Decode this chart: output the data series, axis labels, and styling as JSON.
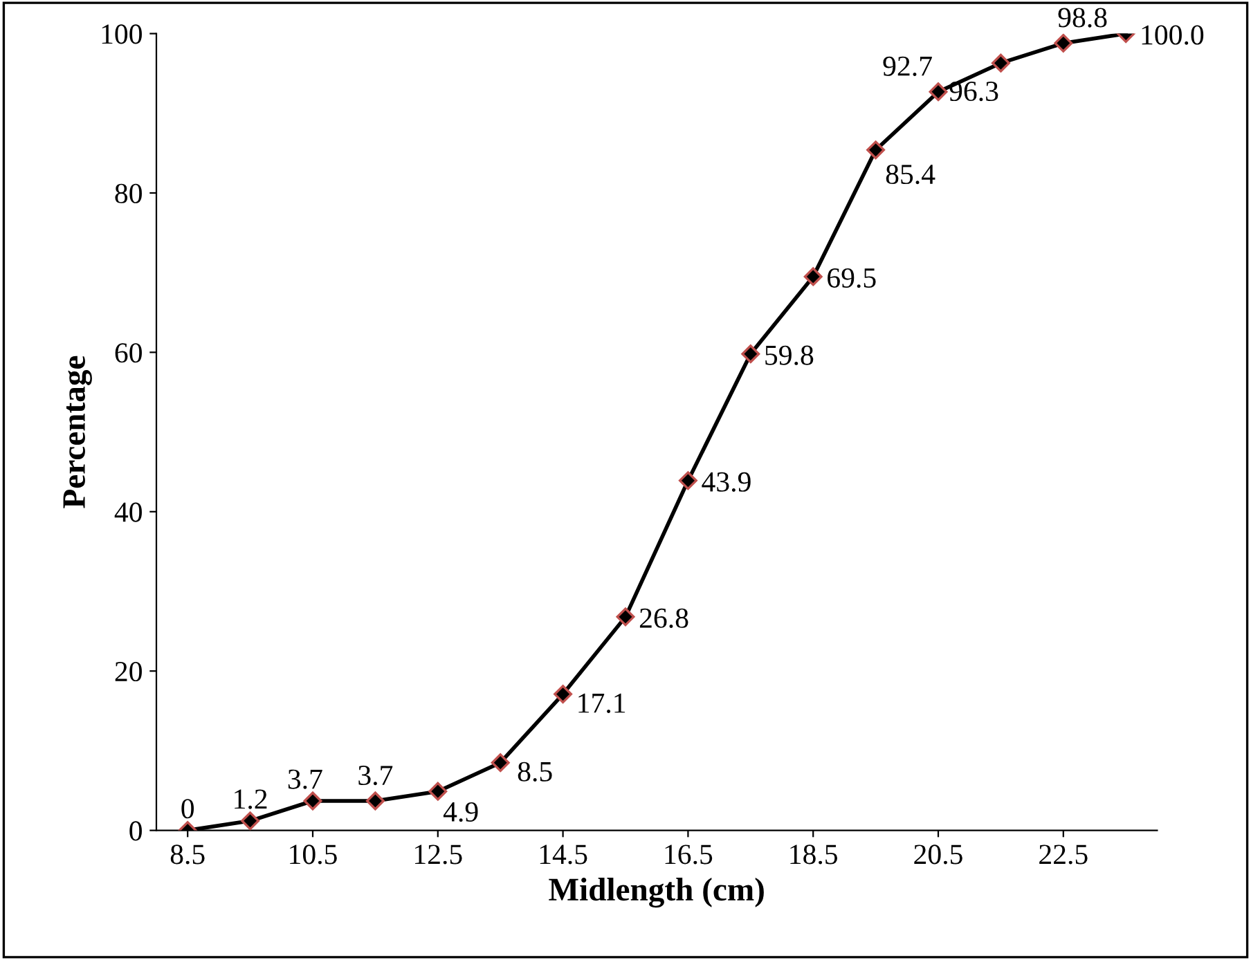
{
  "chart_data": {
    "type": "line",
    "xlabel": "Midlength (cm)",
    "ylabel": "Percentage",
    "x": [
      8.5,
      9.5,
      10.5,
      11.5,
      12.5,
      13.5,
      14.5,
      15.5,
      16.5,
      17.5,
      18.5,
      19.5,
      20.5,
      21.5,
      22.5,
      23.5
    ],
    "series": [
      {
        "color": "#000000",
        "values": [
          0,
          1.2,
          3.7,
          3.7,
          4.9,
          8.5,
          17.1,
          26.8,
          43.9,
          59.8,
          69.5,
          85.4,
          92.7,
          96.3,
          98.8,
          100.0
        ],
        "value_labels": [
          "0",
          "1.2",
          "3.7",
          "3.7",
          "4.9",
          "8.5",
          "17.1",
          "26.8",
          "43.9",
          "59.8",
          "69.5",
          "85.4",
          "92.7",
          "96.3",
          "98.8",
          "100.0"
        ]
      }
    ],
    "xlim": [
      8,
      24
    ],
    "xticks": [
      8.5,
      10.5,
      12.5,
      14.5,
      16.5,
      18.5,
      20.5,
      22.5
    ],
    "ylim": [
      0,
      100
    ],
    "yticks": [
      0,
      20,
      40,
      60,
      80,
      100
    ],
    "marker": "diamond",
    "line_style": "solid",
    "grid": false,
    "legend": false
  }
}
